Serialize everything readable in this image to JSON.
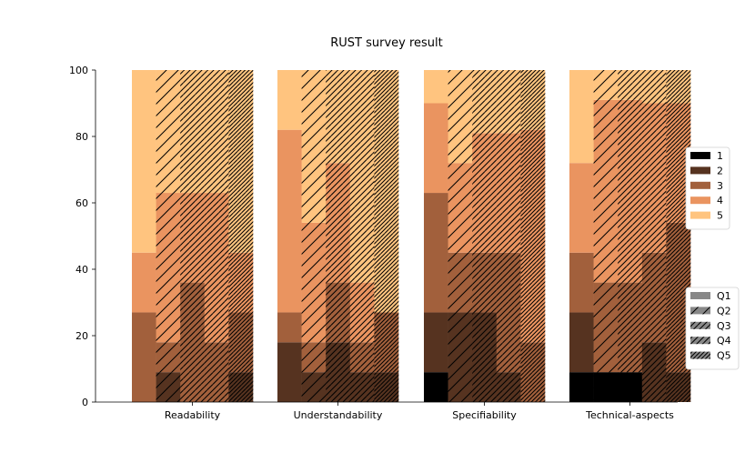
{
  "chart_data": {
    "type": "bar",
    "subtype": "grouped stacked bar (percent)",
    "title": "RUST survey result",
    "xlabel": "",
    "ylabel": "",
    "ylim": [
      0,
      100
    ],
    "yticks": [
      0,
      20,
      40,
      60,
      80,
      100
    ],
    "categories": [
      "Readability",
      "Understandability",
      "Specifiability",
      "Technical-aspects"
    ],
    "questions": [
      "Q1",
      "Q2",
      "Q3",
      "Q4",
      "Q5"
    ],
    "question_hatch": [
      "none",
      "/",
      "//",
      "//",
      "///"
    ],
    "ratings": [
      "1",
      "2",
      "3",
      "4",
      "5"
    ],
    "rating_colors": {
      "1": "#000000",
      "2": "#563320",
      "3": "#a2603c",
      "4": "#ea9460",
      "5": "#ffc47f"
    },
    "legend_ratings_position": "center-right, outside axes",
    "legend_questions_position": "lower-right, outside axes",
    "grid": false,
    "series": [
      {
        "name": "1",
        "values_by_category": [
          [
            0,
            0,
            0,
            0,
            0
          ],
          [
            0,
            0,
            0,
            0,
            0
          ],
          [
            9,
            0,
            0,
            0,
            0
          ],
          [
            9,
            9,
            9,
            0,
            0
          ]
        ]
      },
      {
        "name": "2",
        "values_by_category": [
          [
            0,
            9,
            0,
            0,
            9
          ],
          [
            18,
            9,
            18,
            9,
            9
          ],
          [
            18,
            27,
            27,
            9,
            0
          ],
          [
            18,
            0,
            0,
            18,
            9
          ]
        ]
      },
      {
        "name": "3",
        "values_by_category": [
          [
            27,
            9,
            36,
            18,
            18
          ],
          [
            9,
            9,
            18,
            9,
            18
          ],
          [
            36,
            18,
            18,
            36,
            18
          ],
          [
            18,
            27,
            27,
            27,
            45
          ]
        ]
      },
      {
        "name": "4",
        "values_by_category": [
          [
            18,
            45,
            27,
            45,
            18
          ],
          [
            55,
            36,
            36,
            18,
            0
          ],
          [
            27,
            27,
            36,
            36,
            64
          ],
          [
            27,
            55,
            55,
            45,
            36
          ]
        ]
      },
      {
        "name": "5",
        "values_by_category": [
          [
            55,
            37,
            37,
            37,
            55
          ],
          [
            18,
            46,
            28,
            64,
            73
          ],
          [
            10,
            28,
            19,
            19,
            18
          ],
          [
            28,
            9,
            9,
            10,
            10
          ]
        ]
      }
    ]
  }
}
